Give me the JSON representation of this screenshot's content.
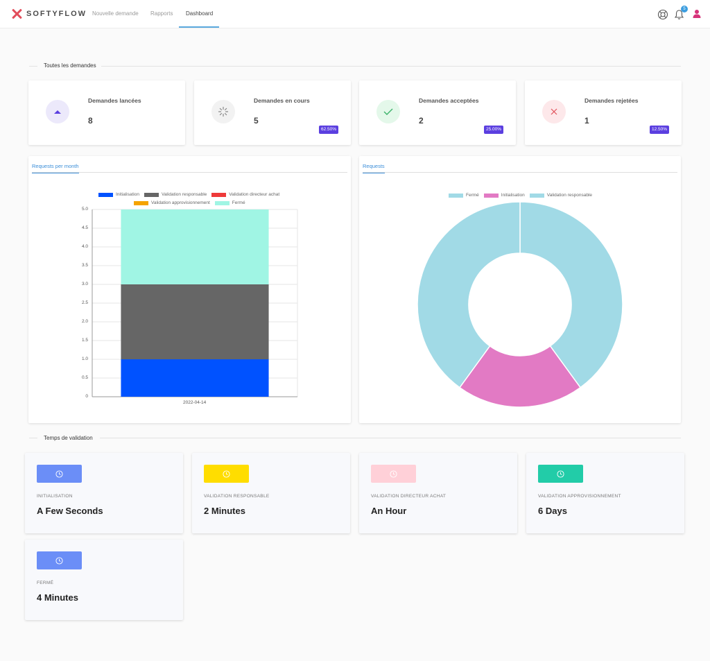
{
  "navbar": {
    "logo_text": "SOFTYFLOW",
    "links": [
      "Nouvelle demande",
      "Rapports",
      "Dashboard"
    ],
    "notification_count": "5"
  },
  "sections": {
    "all_requests": "Toutes les demandes",
    "validation_time": "Temps de validation"
  },
  "stats": [
    {
      "label": "Demandes lancées",
      "value": "8",
      "pill": "",
      "icon": "triangle-up-icon",
      "color": "#5b3fe0",
      "bg": "#ece9fb"
    },
    {
      "label": "Demandes en cours",
      "value": "5",
      "pill": "62.50%",
      "icon": "spinner-icon",
      "color": "#888888",
      "bg": "#f2f2f2"
    },
    {
      "label": "Demandes acceptées",
      "value": "2",
      "pill": "25.00%",
      "icon": "check-icon",
      "color": "#3bb36a",
      "bg": "#e4f8ea"
    },
    {
      "label": "Demandes rejetées",
      "value": "1",
      "pill": "12.50%",
      "icon": "close-icon",
      "color": "#e0505a",
      "bg": "#fde8ea"
    }
  ],
  "panels": {
    "left_tab": "Requests per month",
    "right_tab": "Requests"
  },
  "chart_data": [
    {
      "type": "bar",
      "stacked": true,
      "categories": [
        "2022-04-14"
      ],
      "series": [
        {
          "name": "Initialisation",
          "values": [
            1
          ],
          "color": "#0052ff"
        },
        {
          "name": "Validation responsable",
          "values": [
            2
          ],
          "color": "#666666"
        },
        {
          "name": "Validation directeur achat",
          "values": [
            0
          ],
          "color": "#ee3a3a"
        },
        {
          "name": "Validation approvisionnement",
          "values": [
            0
          ],
          "color": "#f5a300"
        },
        {
          "name": "Fermé",
          "values": [
            2
          ],
          "color": "#a0f5e4"
        }
      ],
      "ylim": [
        0,
        5
      ],
      "yticks": [
        "0",
        "0.5",
        "1.0",
        "1.5",
        "2.0",
        "2.5",
        "3.0",
        "3.5",
        "4.0",
        "4.5",
        "5.0"
      ],
      "legend": "top",
      "grid": true
    },
    {
      "type": "pie",
      "donut": true,
      "labels": [
        "Fermé",
        "Initialisation",
        "Validation responsable"
      ],
      "values": [
        2,
        1,
        2
      ],
      "colors": [
        "#a1dae6",
        "#e27ac4",
        "#a1dae6"
      ],
      "legend": "top"
    }
  ],
  "time_cards": [
    {
      "label": "INITIALISATION",
      "value": "A Few Seconds",
      "color": "#6b8ef7"
    },
    {
      "label": "VALIDATION RESPONSABLE",
      "value": "2 Minutes",
      "color": "#ffdd00"
    },
    {
      "label": "VALIDATION DIRECTEUR ACHAT",
      "value": "An Hour",
      "color": "#ffd0d8"
    },
    {
      "label": "VALIDATION APPROVISIONNEMENT",
      "value": "6 Days",
      "color": "#22cca8"
    },
    {
      "label": "FERMÉ",
      "value": "4 Minutes",
      "color": "#6b8ef7"
    }
  ]
}
